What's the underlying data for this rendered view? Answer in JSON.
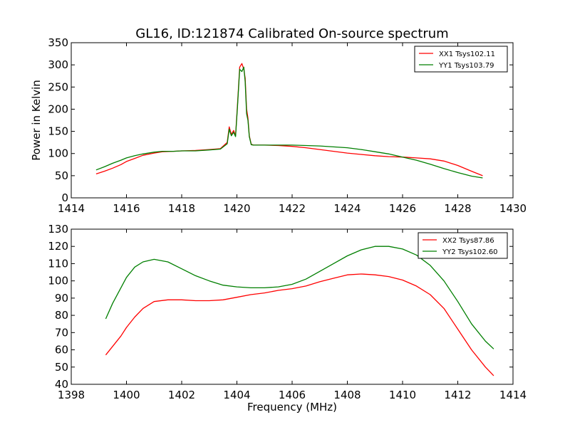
{
  "chart_data": [
    {
      "type": "line",
      "title": "GL16, ID:121874 Calibrated On-source spectrum",
      "xlabel": "",
      "ylabel": "Power in Kelvin",
      "xlim": [
        1414,
        1430
      ],
      "ylim": [
        0,
        350
      ],
      "xticks": [
        1414,
        1416,
        1418,
        1420,
        1422,
        1424,
        1426,
        1428,
        1430
      ],
      "yticks": [
        0,
        50,
        100,
        150,
        200,
        250,
        300,
        350
      ],
      "legend_position": "top-right",
      "series": [
        {
          "name": "XX1 Tsys102.11",
          "color": "#ff0000",
          "x": [
            1414.9,
            1415.2,
            1415.5,
            1415.8,
            1416.0,
            1416.3,
            1416.6,
            1417.0,
            1417.3,
            1417.7,
            1418.0,
            1418.5,
            1419.0,
            1419.4,
            1419.65,
            1419.72,
            1419.8,
            1419.88,
            1419.95,
            1420.02,
            1420.1,
            1420.18,
            1420.25,
            1420.3,
            1420.35,
            1420.4,
            1420.45,
            1420.52,
            1420.6,
            1421.0,
            1421.5,
            1422.0,
            1422.5,
            1423.0,
            1423.5,
            1424.0,
            1424.5,
            1425.0,
            1425.5,
            1426.0,
            1426.5,
            1427.0,
            1427.5,
            1428.0,
            1428.5,
            1428.9
          ],
          "y": [
            54,
            60,
            67,
            75,
            82,
            89,
            96,
            101,
            104,
            105,
            106,
            107,
            109,
            111,
            125,
            160,
            143,
            152,
            140,
            210,
            295,
            303,
            290,
            270,
            200,
            180,
            140,
            121,
            119,
            119,
            118,
            116,
            113,
            109,
            105,
            101,
            98,
            95,
            93,
            92,
            90,
            88,
            83,
            73,
            60,
            50
          ]
        },
        {
          "name": "YY1 Tsys103.79",
          "color": "#007f00",
          "x": [
            1414.9,
            1415.2,
            1415.5,
            1415.8,
            1416.0,
            1416.3,
            1416.6,
            1417.0,
            1417.3,
            1417.7,
            1418.0,
            1418.5,
            1419.0,
            1419.4,
            1419.65,
            1419.72,
            1419.8,
            1419.88,
            1419.95,
            1420.02,
            1420.1,
            1420.18,
            1420.25,
            1420.3,
            1420.35,
            1420.4,
            1420.45,
            1420.52,
            1420.6,
            1421.0,
            1421.5,
            1422.0,
            1422.5,
            1423.0,
            1423.5,
            1424.0,
            1424.5,
            1425.0,
            1425.5,
            1426.0,
            1426.5,
            1427.0,
            1427.5,
            1428.0,
            1428.5,
            1428.9
          ],
          "y": [
            63,
            70,
            78,
            85,
            90,
            95,
            99,
            103,
            105,
            105,
            106,
            106,
            108,
            110,
            122,
            155,
            140,
            148,
            138,
            205,
            290,
            285,
            295,
            262,
            190,
            175,
            138,
            120,
            119,
            119,
            119,
            119,
            118,
            117,
            115,
            113,
            109,
            104,
            99,
            92,
            85,
            76,
            66,
            57,
            49,
            45
          ]
        }
      ]
    },
    {
      "type": "line",
      "title": "",
      "xlabel": "Frequency (MHz)",
      "ylabel": "",
      "xlim": [
        1398,
        1414
      ],
      "ylim": [
        40,
        130
      ],
      "xticks": [
        1398,
        1400,
        1402,
        1404,
        1406,
        1408,
        1410,
        1412,
        1414
      ],
      "yticks": [
        40,
        50,
        60,
        70,
        80,
        90,
        100,
        110,
        120,
        130
      ],
      "legend_position": "top-right",
      "series": [
        {
          "name": "XX2 Tsys87.86",
          "color": "#ff0000",
          "x": [
            1399.25,
            1399.5,
            1399.8,
            1400.0,
            1400.3,
            1400.6,
            1401.0,
            1401.5,
            1402.0,
            1402.5,
            1403.0,
            1403.5,
            1404.0,
            1404.5,
            1405.0,
            1405.5,
            1406.0,
            1406.5,
            1407.0,
            1407.5,
            1408.0,
            1408.5,
            1409.0,
            1409.5,
            1410.0,
            1410.5,
            1411.0,
            1411.5,
            1412.0,
            1412.5,
            1413.0,
            1413.3
          ],
          "y": [
            57,
            62,
            68,
            73,
            79,
            84,
            88,
            89,
            89,
            88.5,
            88.5,
            89,
            90.5,
            92,
            93,
            94.5,
            95.5,
            97,
            99.5,
            101.5,
            103.5,
            104,
            103.5,
            102.5,
            100.5,
            97,
            92,
            84,
            72,
            60,
            50,
            45
          ]
        },
        {
          "name": "YY2 Tsys102.60",
          "color": "#007f00",
          "x": [
            1399.25,
            1399.5,
            1399.8,
            1400.0,
            1400.3,
            1400.6,
            1401.0,
            1401.5,
            1402.0,
            1402.5,
            1403.0,
            1403.5,
            1404.0,
            1404.5,
            1405.0,
            1405.5,
            1406.0,
            1406.5,
            1407.0,
            1407.5,
            1408.0,
            1408.5,
            1409.0,
            1409.5,
            1410.0,
            1410.5,
            1411.0,
            1411.5,
            1412.0,
            1412.5,
            1413.0,
            1413.3
          ],
          "y": [
            78,
            87,
            96,
            102,
            108,
            111,
            112.5,
            111,
            107,
            103,
            100,
            97.5,
            96.5,
            96,
            96,
            96.5,
            98,
            101,
            105.5,
            110,
            114.5,
            118,
            120,
            120,
            118.5,
            115,
            109,
            100,
            88,
            75,
            65,
            60.5
          ]
        }
      ]
    }
  ]
}
